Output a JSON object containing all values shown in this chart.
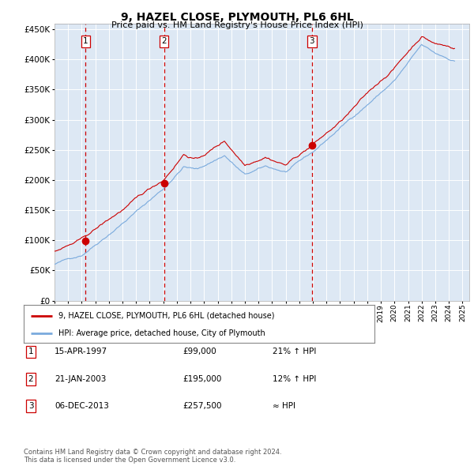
{
  "title": "9, HAZEL CLOSE, PLYMOUTH, PL6 6HL",
  "subtitle": "Price paid vs. HM Land Registry's House Price Index (HPI)",
  "legend_line1": "9, HAZEL CLOSE, PLYMOUTH, PL6 6HL (detached house)",
  "legend_line2": "HPI: Average price, detached house, City of Plymouth",
  "footer1": "Contains HM Land Registry data © Crown copyright and database right 2024.",
  "footer2": "This data is licensed under the Open Government Licence v3.0.",
  "sales": [
    {
      "num": 1,
      "date": "15-APR-1997",
      "price": 99000,
      "note": "21% ↑ HPI",
      "year": 1997.29
    },
    {
      "num": 2,
      "date": "21-JAN-2003",
      "price": 195000,
      "note": "12% ↑ HPI",
      "year": 2003.05
    },
    {
      "num": 3,
      "date": "06-DEC-2013",
      "price": 257500,
      "note": "≈ HPI",
      "year": 2013.92
    }
  ],
  "hpi_color": "#7aaadd",
  "price_color": "#cc0000",
  "dashed_color": "#cc0000",
  "background_plot": "#dde8f4",
  "background_fig": "#ffffff",
  "grid_color": "#ffffff",
  "ylim": [
    0,
    460000
  ],
  "xlim": [
    1995,
    2025.5
  ],
  "yticks": [
    0,
    50000,
    100000,
    150000,
    200000,
    250000,
    300000,
    350000,
    400000,
    450000
  ]
}
